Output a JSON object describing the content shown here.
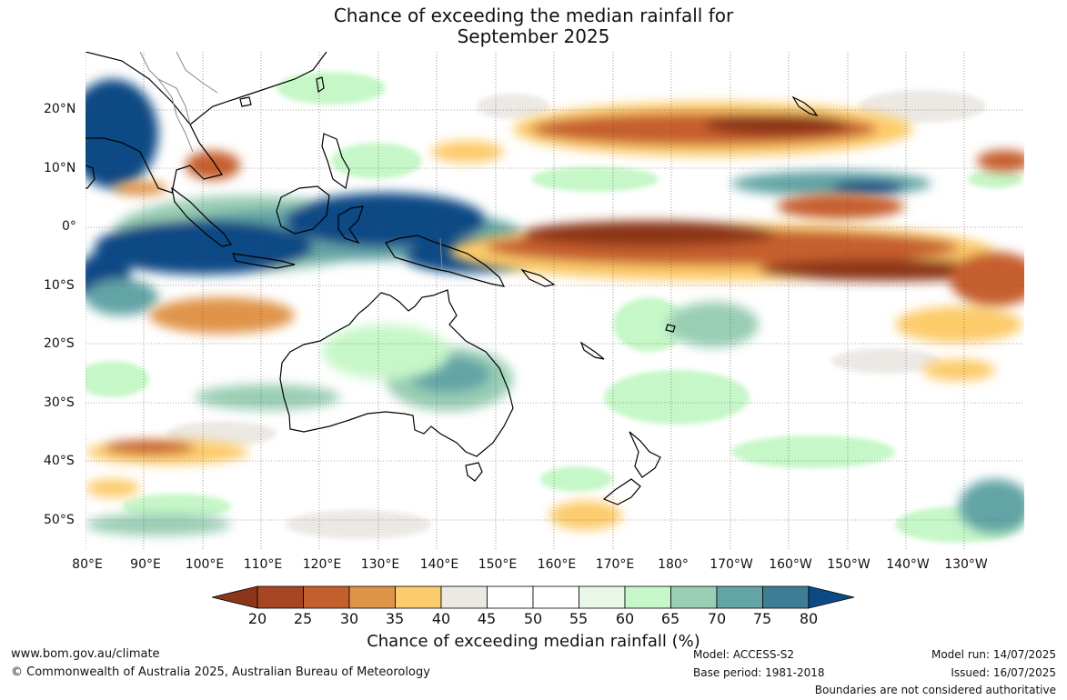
{
  "title": {
    "line1": "Chance of exceeding the median rainfall for",
    "line2": "September 2025"
  },
  "map": {
    "lat_labels": [
      "20°N",
      "10°N",
      "0°",
      "10°S",
      "20°S",
      "30°S",
      "40°S",
      "50°S"
    ],
    "lon_labels": [
      "80°E",
      "90°E",
      "100°E",
      "110°E",
      "120°E",
      "130°E",
      "140°E",
      "150°E",
      "160°E",
      "170°E",
      "180°",
      "170°W",
      "160°W",
      "150°W",
      "140°W",
      "130°W"
    ],
    "colors": {
      "lt20": "#8c3518",
      "c20_25": "#a74622",
      "c25_30": "#c65f2e",
      "c30_35": "#e09448",
      "c35_40": "#fccb6b",
      "c40_45": "#ece9e5",
      "c45_50": "#ffffff",
      "c50_55": "#ffffff",
      "c55_60": "#e8f7e8",
      "c60_65": "#c6f7c8",
      "c65_70": "#99cdb4",
      "c70_75": "#63a4a6",
      "c75_80": "#3f7d95",
      "gt80": "#0c4a85",
      "coast": "#000000",
      "border": "#888888",
      "grid": "#555555"
    }
  },
  "colorbar": {
    "ticks": [
      "20",
      "25",
      "30",
      "35",
      "40",
      "45",
      "50",
      "55",
      "60",
      "65",
      "70",
      "75",
      "80"
    ],
    "label": "Chance of exceeding median rainfall (%)"
  },
  "footer": {
    "website": "www.bom.gov.au/climate",
    "copyright": "© Commonwealth of Australia 2025, Australian Bureau of Meteorology",
    "model": "Model: ACCESS-S2",
    "base_period": "Base period: 1981-2018",
    "model_run": "Model run: 14/07/2025",
    "issued": "Issued: 16/07/2025",
    "disclaimer": "Boundaries are not considered authoritative"
  }
}
